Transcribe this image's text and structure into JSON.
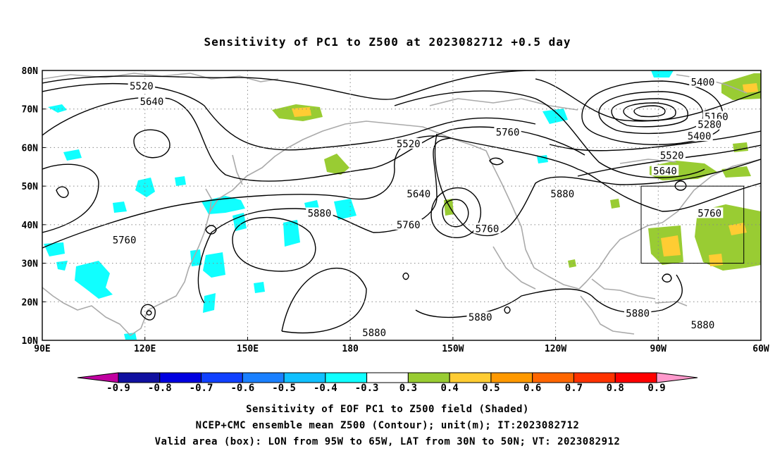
{
  "title": "Sensitivity of PC1 to Z500 at 2023082712 +0.5 day",
  "footer": {
    "line1": "Sensitivity of EOF PC1 to Z500 field (Shaded)",
    "line2": "NCEP+CMC ensemble mean Z500 (Contour); unit(m); IT:2023082712",
    "line3": "Valid area (box): LON from 95W to 65W, LAT from 30N to 50N; VT: 2023082912"
  },
  "map": {
    "lon_range": [
      90,
      300
    ],
    "lat_range": [
      10,
      80
    ],
    "lon_ticks": [
      {
        "lon": 90,
        "label": "90E"
      },
      {
        "lon": 120,
        "label": "120E"
      },
      {
        "lon": 150,
        "label": "150E"
      },
      {
        "lon": 180,
        "label": "180"
      },
      {
        "lon": 210,
        "label": "150W"
      },
      {
        "lon": 240,
        "label": "120W"
      },
      {
        "lon": 270,
        "label": "90W"
      },
      {
        "lon": 300,
        "label": "60W"
      }
    ],
    "lat_ticks": [
      {
        "lat": 10,
        "label": "10N"
      },
      {
        "lat": 20,
        "label": "20N"
      },
      {
        "lat": 30,
        "label": "30N"
      },
      {
        "lat": 40,
        "label": "40N"
      },
      {
        "lat": 50,
        "label": "50N"
      },
      {
        "lat": 60,
        "label": "60N"
      },
      {
        "lat": 70,
        "label": "70N"
      },
      {
        "lat": 80,
        "label": "80N"
      }
    ],
    "valid_box": {
      "lon_west": 265,
      "lon_east": 295,
      "lat_south": 30,
      "lat_north": 50
    },
    "contour_labels": [
      {
        "text": "5520",
        "lon": 119,
        "lat": 76
      },
      {
        "text": "5640",
        "lon": 122,
        "lat": 72
      },
      {
        "text": "5520",
        "lon": 197,
        "lat": 61
      },
      {
        "text": "5640",
        "lon": 200,
        "lat": 48
      },
      {
        "text": "5880",
        "lon": 171,
        "lat": 43
      },
      {
        "text": "5760",
        "lon": 197,
        "lat": 40
      },
      {
        "text": "5760",
        "lon": 114,
        "lat": 36
      },
      {
        "text": "5760",
        "lon": 226,
        "lat": 64
      },
      {
        "text": "5760",
        "lon": 220,
        "lat": 39
      },
      {
        "text": "5880",
        "lon": 242,
        "lat": 48
      },
      {
        "text": "5880",
        "lon": 218,
        "lat": 16
      },
      {
        "text": "5880",
        "lon": 187,
        "lat": 12
      },
      {
        "text": "5880",
        "lon": 264,
        "lat": 17
      },
      {
        "text": "5880",
        "lon": 283,
        "lat": 14
      },
      {
        "text": "5400",
        "lon": 283,
        "lat": 77
      },
      {
        "text": "5160",
        "lon": 287,
        "lat": 68
      },
      {
        "text": "5280",
        "lon": 285,
        "lat": 66
      },
      {
        "text": "5400",
        "lon": 282,
        "lat": 63
      },
      {
        "text": "5520",
        "lon": 274,
        "lat": 58
      },
      {
        "text": "5640",
        "lon": 272,
        "lat": 54
      },
      {
        "text": "5760",
        "lon": 285,
        "lat": 43
      }
    ]
  },
  "colorbar": {
    "colors": [
      "#c000a0",
      "#1010a0",
      "#0000e0",
      "#1040ff",
      "#1a80ff",
      "#10c0ff",
      "#10ffff",
      "#ffffff",
      "#99cc33",
      "#ffcc33",
      "#ff9900",
      "#ff6600",
      "#ff3300",
      "#ff0000",
      "#ff99cc"
    ],
    "labels": [
      "-0.9",
      "-0.8",
      "-0.7",
      "-0.6",
      "-0.5",
      "-0.4",
      "-0.3",
      "0.3",
      "0.4",
      "0.5",
      "0.6",
      "0.7",
      "0.8",
      "0.9"
    ]
  }
}
